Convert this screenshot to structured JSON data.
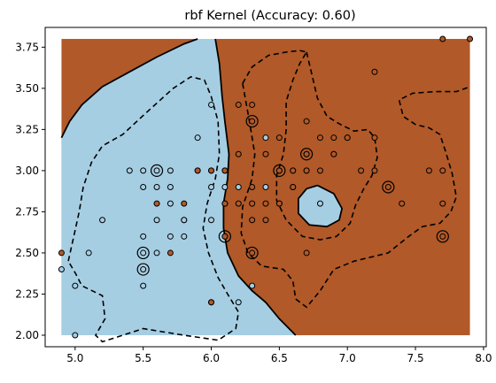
{
  "chart_data": {
    "type": "scatter",
    "title": "rbf Kernel (Accuracy: 0.60)",
    "xlabel": "",
    "ylabel": "",
    "xlim": [
      4.78,
      8.02
    ],
    "ylim": [
      1.93,
      3.87
    ],
    "xticks": [
      "5.0",
      "5.5",
      "6.0",
      "6.5",
      "7.0",
      "7.5",
      "8.0"
    ],
    "yticks": [
      "2.00",
      "2.25",
      "2.50",
      "2.75",
      "3.00",
      "3.25",
      "3.50",
      "3.75"
    ],
    "grid": false,
    "legend": "none",
    "region": {
      "x": [
        4.9,
        7.9
      ],
      "y": [
        2.0,
        3.8
      ]
    },
    "colors": {
      "class0": "#a6cee3",
      "class1": "#b15928"
    },
    "boundary_solid": [
      [
        [
          4.9,
          3.2
        ],
        [
          4.96,
          3.3
        ],
        [
          5.05,
          3.4
        ],
        [
          5.2,
          3.51
        ],
        [
          5.4,
          3.6
        ],
        [
          5.6,
          3.69
        ],
        [
          5.8,
          3.77
        ],
        [
          5.9,
          3.8
        ]
      ],
      [
        [
          6.03,
          3.8
        ],
        [
          6.06,
          3.65
        ],
        [
          6.08,
          3.45
        ],
        [
          6.1,
          3.3
        ],
        [
          6.13,
          3.1
        ],
        [
          6.12,
          2.95
        ],
        [
          6.09,
          2.8
        ],
        [
          6.09,
          2.65
        ],
        [
          6.12,
          2.5
        ],
        [
          6.2,
          2.36
        ],
        [
          6.3,
          2.27
        ],
        [
          6.4,
          2.2
        ],
        [
          6.5,
          2.1
        ],
        [
          6.62,
          2.0
        ]
      ],
      [
        [
          6.78,
          2.91
        ],
        [
          6.9,
          2.86
        ],
        [
          6.96,
          2.77
        ],
        [
          6.94,
          2.7
        ],
        [
          6.85,
          2.66
        ],
        [
          6.72,
          2.67
        ],
        [
          6.64,
          2.74
        ],
        [
          6.64,
          2.83
        ],
        [
          6.7,
          2.89
        ],
        [
          6.78,
          2.91
        ]
      ]
    ],
    "boundary_dashed": [
      [
        [
          4.95,
          2.45
        ],
        [
          4.99,
          2.6
        ],
        [
          5.03,
          2.75
        ],
        [
          5.06,
          2.9
        ],
        [
          5.12,
          3.05
        ],
        [
          5.2,
          3.15
        ],
        [
          5.35,
          3.22
        ],
        [
          5.52,
          3.35
        ],
        [
          5.72,
          3.5
        ],
        [
          5.85,
          3.57
        ],
        [
          5.95,
          3.55
        ],
        [
          6.0,
          3.45
        ],
        [
          6.05,
          3.3
        ],
        [
          6.06,
          3.1
        ],
        [
          6.03,
          2.95
        ],
        [
          5.97,
          2.8
        ],
        [
          5.94,
          2.65
        ],
        [
          5.98,
          2.5
        ],
        [
          6.05,
          2.35
        ],
        [
          6.12,
          2.25
        ],
        [
          6.2,
          2.14
        ],
        [
          6.18,
          2.04
        ],
        [
          6.05,
          1.97
        ],
        [
          5.8,
          2.0
        ],
        [
          5.5,
          2.04
        ],
        [
          5.35,
          2.0
        ],
        [
          5.2,
          1.96
        ],
        [
          5.15,
          2.0
        ],
        [
          5.22,
          2.1
        ],
        [
          5.2,
          2.24
        ],
        [
          5.05,
          2.3
        ],
        [
          5.0,
          2.38
        ],
        [
          4.95,
          2.45
        ]
      ],
      [
        [
          6.23,
          3.53
        ],
        [
          6.28,
          3.3
        ],
        [
          6.32,
          3.1
        ],
        [
          6.3,
          2.95
        ],
        [
          6.23,
          2.78
        ],
        [
          6.22,
          2.62
        ],
        [
          6.27,
          2.5
        ],
        [
          6.37,
          2.42
        ],
        [
          6.53,
          2.4
        ],
        [
          6.6,
          2.33
        ],
        [
          6.62,
          2.22
        ],
        [
          6.7,
          2.17
        ],
        [
          6.8,
          2.27
        ],
        [
          6.9,
          2.4
        ],
        [
          7.05,
          2.45
        ],
        [
          7.15,
          2.47
        ],
        [
          7.3,
          2.5
        ],
        [
          7.45,
          2.6
        ],
        [
          7.55,
          2.66
        ],
        [
          7.68,
          2.68
        ],
        [
          7.76,
          2.75
        ],
        [
          7.8,
          2.84
        ],
        [
          7.77,
          2.98
        ],
        [
          7.72,
          3.12
        ],
        [
          7.68,
          3.22
        ],
        [
          7.6,
          3.26
        ],
        [
          7.5,
          3.28
        ],
        [
          7.41,
          3.33
        ],
        [
          7.38,
          3.43
        ],
        [
          7.48,
          3.47
        ],
        [
          7.64,
          3.48
        ],
        [
          7.8,
          3.48
        ],
        [
          7.9,
          3.51
        ]
      ],
      [
        [
          6.23,
          3.53
        ],
        [
          6.3,
          3.63
        ],
        [
          6.42,
          3.7
        ],
        [
          6.55,
          3.72
        ],
        [
          6.65,
          3.73
        ],
        [
          6.7,
          3.72
        ]
      ],
      [
        [
          6.7,
          3.72
        ],
        [
          6.74,
          3.58
        ],
        [
          6.78,
          3.44
        ],
        [
          6.85,
          3.33
        ],
        [
          6.95,
          3.28
        ],
        [
          7.05,
          3.24
        ],
        [
          7.15,
          3.25
        ],
        [
          7.2,
          3.2
        ],
        [
          7.22,
          3.08
        ],
        [
          7.18,
          2.97
        ],
        [
          7.12,
          2.89
        ],
        [
          7.06,
          2.79
        ],
        [
          7.02,
          2.68
        ],
        [
          6.92,
          2.6
        ],
        [
          6.8,
          2.58
        ],
        [
          6.67,
          2.6
        ],
        [
          6.55,
          2.7
        ],
        [
          6.48,
          2.82
        ],
        [
          6.48,
          2.97
        ],
        [
          6.53,
          3.1
        ],
        [
          6.55,
          3.25
        ],
        [
          6.55,
          3.42
        ],
        [
          6.6,
          3.55
        ],
        [
          6.65,
          3.65
        ],
        [
          6.7,
          3.72
        ]
      ]
    ],
    "points_class0": [
      [
        4.9,
        2.4
      ],
      [
        5.0,
        2.3
      ],
      [
        5.0,
        2.0
      ],
      [
        5.1,
        2.5
      ],
      [
        5.2,
        2.7
      ],
      [
        5.4,
        3.0
      ],
      [
        5.5,
        3.0
      ],
      [
        5.5,
        2.9
      ],
      [
        5.5,
        2.6
      ],
      [
        5.5,
        2.5
      ],
      [
        5.5,
        2.4
      ],
      [
        5.5,
        2.3
      ],
      [
        5.6,
        3.0
      ],
      [
        5.6,
        2.9
      ],
      [
        5.6,
        2.7
      ],
      [
        5.6,
        2.5
      ],
      [
        5.7,
        3.0
      ],
      [
        5.7,
        2.9
      ],
      [
        5.7,
        2.8
      ],
      [
        5.7,
        2.6
      ],
      [
        5.8,
        2.7
      ],
      [
        5.8,
        2.6
      ],
      [
        5.8,
        2.7
      ],
      [
        5.9,
        3.2
      ],
      [
        5.9,
        3.0
      ],
      [
        6.0,
        3.4
      ],
      [
        6.0,
        3.0
      ],
      [
        6.0,
        2.9
      ],
      [
        6.0,
        2.7
      ],
      [
        6.0,
        2.2
      ],
      [
        6.1,
        3.0
      ],
      [
        6.1,
        2.9
      ],
      [
        6.1,
        2.8
      ],
      [
        6.1,
        2.6
      ],
      [
        6.2,
        2.9
      ],
      [
        6.2,
        2.2
      ],
      [
        6.3,
        2.3
      ],
      [
        6.4,
        3.2
      ],
      [
        6.4,
        2.9
      ],
      [
        6.5,
        2.8
      ],
      [
        6.5,
        3.0
      ],
      [
        6.6,
        3.0
      ],
      [
        6.6,
        2.9
      ],
      [
        6.7,
        3.1
      ],
      [
        6.7,
        3.0
      ],
      [
        6.8,
        2.8
      ],
      [
        6.9,
        3.1
      ],
      [
        7.0,
        3.2
      ]
    ],
    "points_class1": [
      [
        4.9,
        2.5
      ],
      [
        5.6,
        2.8
      ],
      [
        5.7,
        2.5
      ],
      [
        5.8,
        2.8
      ],
      [
        5.9,
        3.0
      ],
      [
        6.0,
        2.2
      ],
      [
        6.0,
        3.0
      ],
      [
        6.1,
        2.6
      ],
      [
        6.1,
        3.0
      ],
      [
        6.1,
        2.8
      ],
      [
        6.2,
        3.4
      ],
      [
        6.2,
        2.8
      ],
      [
        6.2,
        3.1
      ],
      [
        6.3,
        3.4
      ],
      [
        6.3,
        3.3
      ],
      [
        6.3,
        2.9
      ],
      [
        6.3,
        2.8
      ],
      [
        6.3,
        2.7
      ],
      [
        6.3,
        2.5
      ],
      [
        6.4,
        3.1
      ],
      [
        6.4,
        2.8
      ],
      [
        6.4,
        2.7
      ],
      [
        6.5,
        3.2
      ],
      [
        6.5,
        3.0
      ],
      [
        6.5,
        2.8
      ],
      [
        6.6,
        3.0
      ],
      [
        6.6,
        2.9
      ],
      [
        6.7,
        3.3
      ],
      [
        6.7,
        3.1
      ],
      [
        6.7,
        3.0
      ],
      [
        6.7,
        2.5
      ],
      [
        6.8,
        3.2
      ],
      [
        6.8,
        3.0
      ],
      [
        6.9,
        3.2
      ],
      [
        6.9,
        3.1
      ],
      [
        7.0,
        3.2
      ],
      [
        7.1,
        3.0
      ],
      [
        7.2,
        3.6
      ],
      [
        7.2,
        3.2
      ],
      [
        7.2,
        3.0
      ],
      [
        7.3,
        2.9
      ],
      [
        7.4,
        2.8
      ],
      [
        7.6,
        3.0
      ],
      [
        7.7,
        3.8
      ],
      [
        7.7,
        3.0
      ],
      [
        7.7,
        2.8
      ],
      [
        7.7,
        2.6
      ],
      [
        7.9,
        3.8
      ]
    ],
    "support_vectors": [
      [
        5.5,
        2.5
      ],
      [
        5.5,
        2.4
      ],
      [
        5.6,
        3.0
      ],
      [
        6.1,
        2.6
      ],
      [
        6.3,
        3.3
      ],
      [
        6.3,
        2.5
      ],
      [
        6.5,
        3.0
      ],
      [
        6.7,
        3.1
      ],
      [
        7.3,
        2.9
      ],
      [
        7.7,
        2.6
      ]
    ]
  }
}
